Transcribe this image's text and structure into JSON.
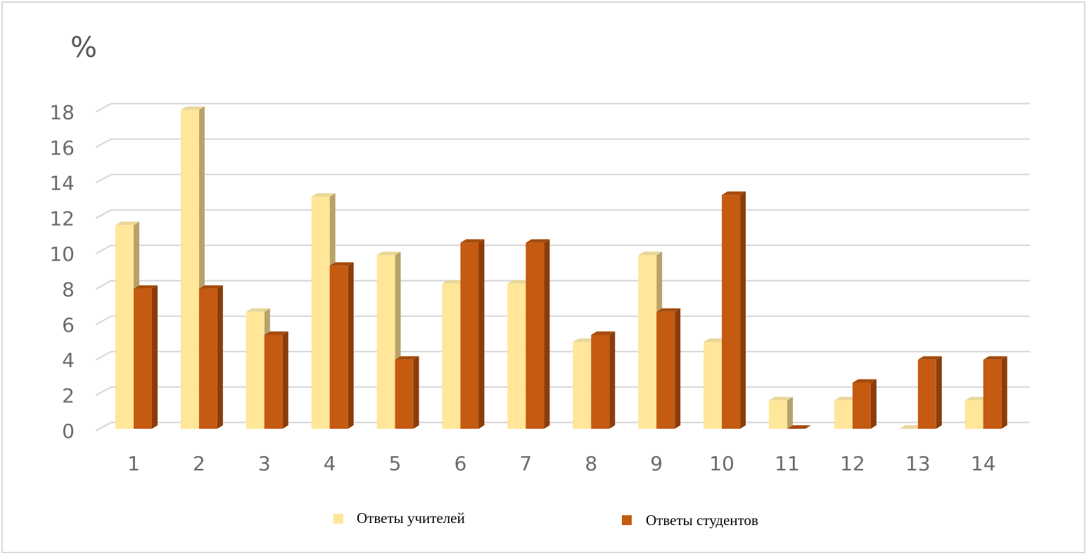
{
  "chart_data": {
    "type": "bar",
    "unit_label": "%",
    "categories": [
      "1",
      "2",
      "3",
      "4",
      "5",
      "6",
      "7",
      "8",
      "9",
      "10",
      "11",
      "12",
      "13",
      "14"
    ],
    "series": [
      {
        "name": "Ответы учителей",
        "color": "#ffe699",
        "values": [
          11.5,
          18,
          6.6,
          13.1,
          9.8,
          8.2,
          8.2,
          4.9,
          9.8,
          4.9,
          1.6,
          1.6,
          0,
          1.6
        ]
      },
      {
        "name": "Ответы студентов",
        "color": "#c55a11",
        "values": [
          7.9,
          7.9,
          5.3,
          9.2,
          3.9,
          10.5,
          10.5,
          5.3,
          6.6,
          13.2,
          0,
          2.6,
          3.9,
          3.9
        ]
      }
    ],
    "y_ticks": [
      "0",
      "2",
      "4",
      "6",
      "8",
      "10",
      "12",
      "14",
      "16",
      "18"
    ],
    "ylim": [
      0,
      18
    ],
    "grid": true,
    "legend_position": "bottom"
  }
}
